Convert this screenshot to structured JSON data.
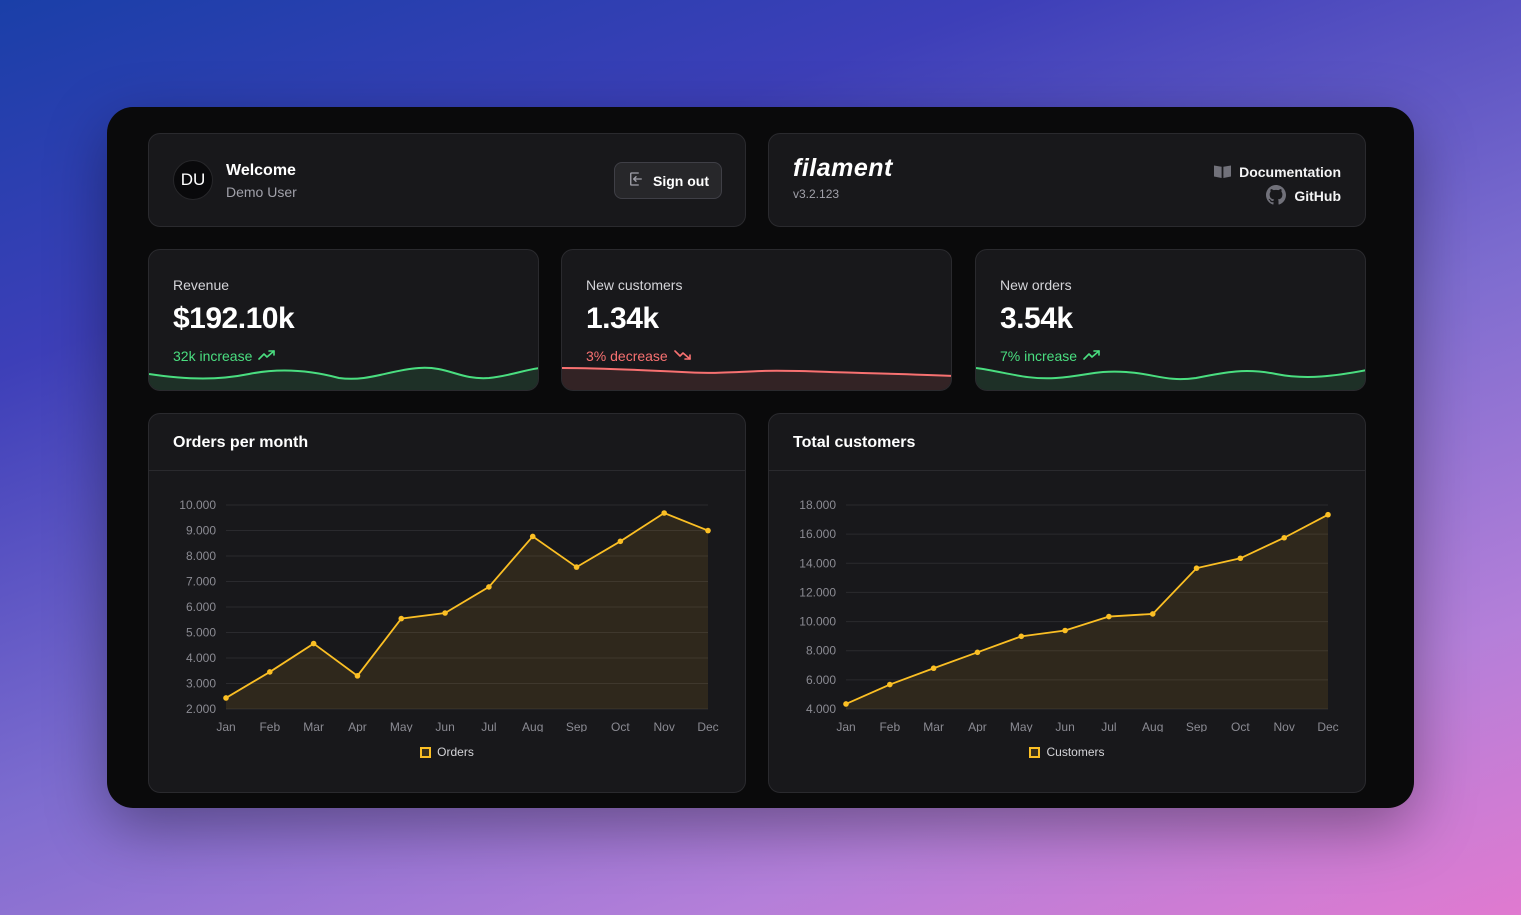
{
  "welcome": {
    "avatar_initials": "DU",
    "title": "Welcome",
    "user_name": "Demo User",
    "sign_out_label": "Sign out"
  },
  "filament": {
    "logo_text": "filament",
    "version": "v3.2.123",
    "documentation_label": "Documentation",
    "github_label": "GitHub"
  },
  "stats": [
    {
      "label": "Revenue",
      "value": "$192.10k",
      "description": "32k increase",
      "trend": "up",
      "color": "#4ade80"
    },
    {
      "label": "New customers",
      "value": "1.34k",
      "description": "3% decrease",
      "trend": "down",
      "color": "#f87171"
    },
    {
      "label": "New orders",
      "value": "3.54k",
      "description": "7% increase",
      "trend": "up",
      "color": "#4ade80"
    }
  ],
  "orders_chart": {
    "heading": "Orders per month",
    "legend": "Orders"
  },
  "customers_chart": {
    "heading": "Total customers",
    "legend": "Customers"
  },
  "chart_data": [
    {
      "type": "line",
      "title": "Orders per month",
      "categories": [
        "Jan",
        "Feb",
        "Mar",
        "Apr",
        "May",
        "Jun",
        "Jul",
        "Aug",
        "Sep",
        "Oct",
        "Nov",
        "Dec"
      ],
      "series": [
        {
          "name": "Orders",
          "values": [
            2433,
            3454,
            4566,
            3300,
            5545,
            5765,
            6787,
            8767,
            7565,
            8576,
            9686,
            8996
          ]
        }
      ],
      "ylim": [
        2000,
        10000
      ],
      "yticks": [
        "2.000",
        "3.000",
        "4.000",
        "5.000",
        "6.000",
        "7.000",
        "8.000",
        "9.000",
        "10.000"
      ],
      "color": "#fbbf24",
      "fill": true,
      "grid": true,
      "legend": "bottom"
    },
    {
      "type": "line",
      "title": "Total customers",
      "categories": [
        "Jan",
        "Feb",
        "Mar",
        "Apr",
        "May",
        "Jun",
        "Jul",
        "Aug",
        "Sep",
        "Oct",
        "Nov",
        "Dec"
      ],
      "series": [
        {
          "name": "Customers",
          "values": [
            4344,
            5676,
            6798,
            7890,
            8987,
            9388,
            10343,
            10524,
            13664,
            14345,
            15753,
            17332
          ]
        }
      ],
      "ylim": [
        4000,
        18000
      ],
      "yticks": [
        "4.000",
        "6.000",
        "8.000",
        "10.000",
        "12.000",
        "14.000",
        "16.000",
        "18.000"
      ],
      "color": "#fbbf24",
      "fill": true,
      "grid": true,
      "legend": "bottom"
    }
  ]
}
